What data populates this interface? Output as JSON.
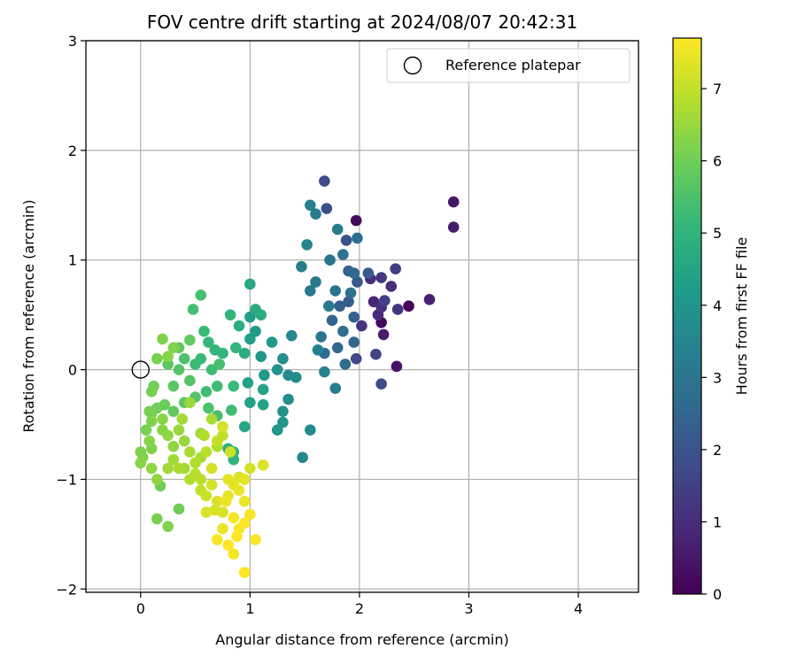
{
  "chart_data": {
    "type": "scatter",
    "title": "FOV centre drift starting at 2024/08/07 20:42:31",
    "xlabel": "Angular distance from reference (arcmin)",
    "ylabel": "Rotation from reference (arcmin)",
    "xlim": [
      -0.5,
      4.55
    ],
    "ylim": [
      -2.03,
      3.0
    ],
    "xticks": [
      0,
      1,
      2,
      3,
      4
    ],
    "yticks": [
      -2,
      -1,
      0,
      1,
      2,
      3
    ],
    "xtick_labels": [
      "0",
      "1",
      "2",
      "3",
      "4"
    ],
    "ytick_labels": [
      "−2",
      "−1",
      "0",
      "1",
      "2",
      "3"
    ],
    "grid": true,
    "legend": {
      "position": "top-right",
      "entries": [
        "Reference platepar"
      ]
    },
    "reference_point": {
      "name": "Reference platepar",
      "x": 0,
      "y": 0,
      "marker": "open-circle"
    },
    "colorbar": {
      "label": "Hours from first FF file",
      "min": 0,
      "max": 7.7,
      "ticks": [
        0,
        1,
        2,
        3,
        4,
        5,
        6,
        7
      ],
      "tick_labels": [
        "0",
        "1",
        "2",
        "3",
        "4",
        "5",
        "6",
        "7"
      ],
      "colormap": "viridis",
      "colormap_stops": [
        "#440154",
        "#482878",
        "#3e4989",
        "#31688e",
        "#26828e",
        "#1f9e89",
        "#35b779",
        "#6ece58",
        "#b5de2b",
        "#fde725"
      ]
    },
    "points": [
      {
        "x": 2.45,
        "y": 0.58,
        "h": 0.05
      },
      {
        "x": 2.2,
        "y": 0.43,
        "h": 0.15
      },
      {
        "x": 1.97,
        "y": 1.36,
        "h": 0.2
      },
      {
        "x": 2.34,
        "y": 0.03,
        "h": 0.4
      },
      {
        "x": 2.86,
        "y": 1.53,
        "h": 0.5
      },
      {
        "x": 2.86,
        "y": 1.3,
        "h": 0.6
      },
      {
        "x": 2.64,
        "y": 0.64,
        "h": 0.7
      },
      {
        "x": 2.22,
        "y": 0.32,
        "h": 0.6
      },
      {
        "x": 2.13,
        "y": 0.62,
        "h": 0.8
      },
      {
        "x": 2.17,
        "y": 0.5,
        "h": 0.9
      },
      {
        "x": 2.1,
        "y": 0.83,
        "h": 1.0
      },
      {
        "x": 2.29,
        "y": 0.76,
        "h": 1.0
      },
      {
        "x": 2.35,
        "y": 0.55,
        "h": 1.2
      },
      {
        "x": 2.2,
        "y": 0.57,
        "h": 1.1
      },
      {
        "x": 2.02,
        "y": 0.4,
        "h": 1.2
      },
      {
        "x": 2.2,
        "y": 0.84,
        "h": 1.3
      },
      {
        "x": 2.33,
        "y": 0.92,
        "h": 1.4
      },
      {
        "x": 2.23,
        "y": 0.63,
        "h": 1.5
      },
      {
        "x": 2.15,
        "y": 0.14,
        "h": 1.6
      },
      {
        "x": 1.97,
        "y": 0.1,
        "h": 1.7
      },
      {
        "x": 2.2,
        "y": -0.13,
        "h": 1.8
      },
      {
        "x": 1.68,
        "y": 1.72,
        "h": 1.8
      },
      {
        "x": 1.7,
        "y": 1.47,
        "h": 1.9
      },
      {
        "x": 1.88,
        "y": 1.18,
        "h": 2.0
      },
      {
        "x": 1.98,
        "y": 0.8,
        "h": 2.1
      },
      {
        "x": 2.08,
        "y": 0.88,
        "h": 2.2
      },
      {
        "x": 1.9,
        "y": 0.62,
        "h": 2.2
      },
      {
        "x": 1.82,
        "y": 0.58,
        "h": 2.3
      },
      {
        "x": 1.95,
        "y": 0.48,
        "h": 2.4
      },
      {
        "x": 1.75,
        "y": 0.45,
        "h": 2.5
      },
      {
        "x": 1.95,
        "y": 0.25,
        "h": 2.5
      },
      {
        "x": 1.8,
        "y": 0.2,
        "h": 2.6
      },
      {
        "x": 1.87,
        "y": 0.05,
        "h": 2.7
      },
      {
        "x": 1.68,
        "y": 0.15,
        "h": 2.7
      },
      {
        "x": 1.98,
        "y": 1.2,
        "h": 2.8
      },
      {
        "x": 1.85,
        "y": 1.05,
        "h": 2.9
      },
      {
        "x": 1.73,
        "y": 1.0,
        "h": 3.0
      },
      {
        "x": 1.78,
        "y": 0.72,
        "h": 3.0
      },
      {
        "x": 1.6,
        "y": 0.8,
        "h": 3.1
      },
      {
        "x": 1.55,
        "y": 0.72,
        "h": 3.1
      },
      {
        "x": 1.47,
        "y": 0.94,
        "h": 3.2
      },
      {
        "x": 1.6,
        "y": 1.42,
        "h": 3.2
      },
      {
        "x": 1.55,
        "y": 1.5,
        "h": 3.3
      },
      {
        "x": 1.78,
        "y": -0.17,
        "h": 3.3
      },
      {
        "x": 1.68,
        "y": -0.02,
        "h": 3.4
      },
      {
        "x": 1.62,
        "y": 0.18,
        "h": 3.4
      },
      {
        "x": 1.52,
        "y": 1.14,
        "h": 3.5
      },
      {
        "x": 1.8,
        "y": 1.28,
        "h": 3.2
      },
      {
        "x": 1.95,
        "y": 0.88,
        "h": 2.6
      },
      {
        "x": 1.92,
        "y": 0.7,
        "h": 2.9
      },
      {
        "x": 1.72,
        "y": 0.58,
        "h": 3.1
      },
      {
        "x": 1.65,
        "y": 0.3,
        "h": 3.0
      },
      {
        "x": 1.85,
        "y": 0.35,
        "h": 2.8
      },
      {
        "x": 1.9,
        "y": 0.9,
        "h": 2.4
      },
      {
        "x": 1.48,
        "y": -0.8,
        "h": 3.6
      },
      {
        "x": 1.55,
        "y": -0.55,
        "h": 3.7
      },
      {
        "x": 1.38,
        "y": 0.31,
        "h": 3.6
      },
      {
        "x": 1.35,
        "y": -0.05,
        "h": 3.7
      },
      {
        "x": 1.42,
        "y": -0.07,
        "h": 3.8
      },
      {
        "x": 1.35,
        "y": -0.27,
        "h": 3.8
      },
      {
        "x": 1.3,
        "y": 0.1,
        "h": 3.8
      },
      {
        "x": 1.25,
        "y": 0.0,
        "h": 3.9
      },
      {
        "x": 1.3,
        "y": -0.38,
        "h": 3.9
      },
      {
        "x": 1.25,
        "y": -0.55,
        "h": 4.0
      },
      {
        "x": 1.3,
        "y": -0.48,
        "h": 4.0
      },
      {
        "x": 1.2,
        "y": 0.25,
        "h": 4.1
      },
      {
        "x": 1.1,
        "y": 0.12,
        "h": 4.1
      },
      {
        "x": 1.05,
        "y": 0.35,
        "h": 4.2
      },
      {
        "x": 1.13,
        "y": -0.05,
        "h": 4.2
      },
      {
        "x": 1.0,
        "y": 0.48,
        "h": 4.3
      },
      {
        "x": 1.0,
        "y": 0.28,
        "h": 4.3
      },
      {
        "x": 0.98,
        "y": -0.12,
        "h": 4.4
      },
      {
        "x": 1.0,
        "y": -0.3,
        "h": 4.4
      },
      {
        "x": 1.12,
        "y": -0.32,
        "h": 4.5
      },
      {
        "x": 1.12,
        "y": -0.18,
        "h": 4.5
      },
      {
        "x": 0.95,
        "y": -0.52,
        "h": 4.6
      },
      {
        "x": 1.0,
        "y": 0.78,
        "h": 4.6
      },
      {
        "x": 1.05,
        "y": 0.55,
        "h": 4.7
      },
      {
        "x": 1.1,
        "y": 0.5,
        "h": 4.7
      },
      {
        "x": 0.95,
        "y": 0.15,
        "h": 4.8
      },
      {
        "x": 0.9,
        "y": 0.4,
        "h": 4.8
      },
      {
        "x": 0.8,
        "y": -0.72,
        "h": 4.9
      },
      {
        "x": 0.85,
        "y": -0.75,
        "h": 4.9
      },
      {
        "x": 0.85,
        "y": -0.82,
        "h": 5.0
      },
      {
        "x": 0.75,
        "y": 0.15,
        "h": 5.0
      },
      {
        "x": 0.68,
        "y": 0.18,
        "h": 5.1
      },
      {
        "x": 0.62,
        "y": 0.25,
        "h": 5.1
      },
      {
        "x": 0.55,
        "y": 0.1,
        "h": 5.2
      },
      {
        "x": 0.5,
        "y": 0.05,
        "h": 5.2
      },
      {
        "x": 0.7,
        "y": -0.15,
        "h": 5.3
      },
      {
        "x": 0.6,
        "y": -0.2,
        "h": 5.3
      },
      {
        "x": 0.55,
        "y": 0.68,
        "h": 5.4
      },
      {
        "x": 0.48,
        "y": 0.55,
        "h": 5.4
      },
      {
        "x": 0.82,
        "y": 0.5,
        "h": 5.0
      },
      {
        "x": 0.87,
        "y": 0.2,
        "h": 5.1
      },
      {
        "x": 0.85,
        "y": -0.15,
        "h": 5.2
      },
      {
        "x": 0.83,
        "y": -0.37,
        "h": 5.3
      },
      {
        "x": 0.7,
        "y": -0.42,
        "h": 5.4
      },
      {
        "x": 0.62,
        "y": -0.35,
        "h": 5.5
      },
      {
        "x": 0.4,
        "y": 0.1,
        "h": 5.5
      },
      {
        "x": 0.35,
        "y": 0.0,
        "h": 5.6
      },
      {
        "x": 0.45,
        "y": -0.1,
        "h": 5.6
      },
      {
        "x": 0.3,
        "y": -0.15,
        "h": 5.7
      },
      {
        "x": 0.25,
        "y": 0.05,
        "h": 5.7
      },
      {
        "x": 0.35,
        "y": 0.2,
        "h": 5.8
      },
      {
        "x": 0.45,
        "y": 0.27,
        "h": 5.8
      },
      {
        "x": 0.65,
        "y": 0.0,
        "h": 5.3
      },
      {
        "x": 0.58,
        "y": 0.35,
        "h": 5.2
      },
      {
        "x": 0.72,
        "y": 0.05,
        "h": 5.4
      },
      {
        "x": 0.5,
        "y": -0.25,
        "h": 5.6
      },
      {
        "x": 0.4,
        "y": -0.3,
        "h": 5.7
      },
      {
        "x": 0.3,
        "y": -0.38,
        "h": 5.8
      },
      {
        "x": 0.22,
        "y": -0.32,
        "h": 5.9
      },
      {
        "x": 0.15,
        "y": -0.35,
        "h": 6.0
      },
      {
        "x": 0.1,
        "y": -0.4,
        "h": 6.0
      },
      {
        "x": 0.08,
        "y": -0.38,
        "h": 6.1
      },
      {
        "x": 0.05,
        "y": -0.55,
        "h": 6.1
      },
      {
        "x": 0.0,
        "y": -0.75,
        "h": 6.2
      },
      {
        "x": 0.02,
        "y": -0.8,
        "h": 6.2
      },
      {
        "x": 0.0,
        "y": -0.85,
        "h": 6.3
      },
      {
        "x": 0.08,
        "y": -0.65,
        "h": 6.3
      },
      {
        "x": 0.1,
        "y": -0.9,
        "h": 6.4
      },
      {
        "x": 0.15,
        "y": -1.0,
        "h": 6.4
      },
      {
        "x": 0.18,
        "y": -1.06,
        "h": 6.0
      },
      {
        "x": 0.15,
        "y": -1.36,
        "h": 6.1
      },
      {
        "x": 0.25,
        "y": -1.43,
        "h": 6.2
      },
      {
        "x": 0.35,
        "y": -1.27,
        "h": 6.0
      },
      {
        "x": 0.2,
        "y": -0.55,
        "h": 6.3
      },
      {
        "x": 0.25,
        "y": -0.6,
        "h": 6.4
      },
      {
        "x": 0.3,
        "y": -0.7,
        "h": 6.4
      },
      {
        "x": 0.35,
        "y": -0.55,
        "h": 6.5
      },
      {
        "x": 0.4,
        "y": -0.65,
        "h": 6.5
      },
      {
        "x": 0.25,
        "y": -0.9,
        "h": 6.6
      },
      {
        "x": 0.3,
        "y": -0.82,
        "h": 6.6
      },
      {
        "x": 0.35,
        "y": -0.9,
        "h": 6.7
      },
      {
        "x": 0.45,
        "y": -0.75,
        "h": 6.7
      },
      {
        "x": 0.5,
        "y": -0.85,
        "h": 6.8
      },
      {
        "x": 0.45,
        "y": -1.0,
        "h": 6.8
      },
      {
        "x": 0.55,
        "y": -1.0,
        "h": 6.9
      },
      {
        "x": 0.6,
        "y": -0.75,
        "h": 6.9
      },
      {
        "x": 0.58,
        "y": -0.6,
        "h": 6.8
      },
      {
        "x": 0.65,
        "y": -0.45,
        "h": 6.7
      },
      {
        "x": 0.7,
        "y": -0.65,
        "h": 7.0
      },
      {
        "x": 0.75,
        "y": -0.6,
        "h": 7.0
      },
      {
        "x": 0.75,
        "y": -0.52,
        "h": 7.1
      },
      {
        "x": 0.82,
        "y": -0.75,
        "h": 7.1
      },
      {
        "x": 0.65,
        "y": -0.9,
        "h": 7.2
      },
      {
        "x": 0.55,
        "y": -0.58,
        "h": 6.6
      },
      {
        "x": 0.45,
        "y": -0.3,
        "h": 6.5
      },
      {
        "x": 0.38,
        "y": -0.45,
        "h": 6.6
      },
      {
        "x": 0.1,
        "y": -0.72,
        "h": 6.2
      },
      {
        "x": 0.12,
        "y": -0.15,
        "h": 6.0
      },
      {
        "x": 0.1,
        "y": -0.2,
        "h": 6.1
      },
      {
        "x": 0.15,
        "y": 0.1,
        "h": 6.1
      },
      {
        "x": 0.2,
        "y": 0.28,
        "h": 6.2
      },
      {
        "x": 0.3,
        "y": 0.2,
        "h": 6.2
      },
      {
        "x": 0.25,
        "y": 0.12,
        "h": 6.3
      },
      {
        "x": 0.65,
        "y": -1.05,
        "h": 7.2
      },
      {
        "x": 0.7,
        "y": -1.2,
        "h": 7.3
      },
      {
        "x": 0.75,
        "y": -1.3,
        "h": 7.3
      },
      {
        "x": 0.8,
        "y": -1.15,
        "h": 7.4
      },
      {
        "x": 0.85,
        "y": -1.05,
        "h": 7.4
      },
      {
        "x": 0.9,
        "y": -1.1,
        "h": 7.5
      },
      {
        "x": 0.95,
        "y": -1.2,
        "h": 7.5
      },
      {
        "x": 1.0,
        "y": -1.32,
        "h": 7.6
      },
      {
        "x": 0.85,
        "y": -1.35,
        "h": 7.6
      },
      {
        "x": 0.75,
        "y": -1.45,
        "h": 7.5
      },
      {
        "x": 0.7,
        "y": -1.55,
        "h": 7.6
      },
      {
        "x": 0.8,
        "y": -1.6,
        "h": 7.7
      },
      {
        "x": 0.88,
        "y": -1.52,
        "h": 7.7
      },
      {
        "x": 0.85,
        "y": -1.68,
        "h": 7.6
      },
      {
        "x": 0.95,
        "y": -1.85,
        "h": 7.7
      },
      {
        "x": 1.05,
        "y": -1.55,
        "h": 7.6
      },
      {
        "x": 0.95,
        "y": -1.0,
        "h": 7.4
      },
      {
        "x": 0.9,
        "y": -0.98,
        "h": 7.3
      },
      {
        "x": 0.8,
        "y": -1.0,
        "h": 7.4
      },
      {
        "x": 0.6,
        "y": -1.3,
        "h": 7.3
      },
      {
        "x": 0.68,
        "y": -1.28,
        "h": 7.2
      },
      {
        "x": 1.0,
        "y": -0.9,
        "h": 7.2
      },
      {
        "x": 1.12,
        "y": -0.87,
        "h": 7.3
      },
      {
        "x": 0.95,
        "y": -1.4,
        "h": 7.7
      },
      {
        "x": 0.9,
        "y": -1.45,
        "h": 7.6
      },
      {
        "x": 0.78,
        "y": -1.2,
        "h": 7.5
      },
      {
        "x": 0.6,
        "y": -1.15,
        "h": 7.1
      },
      {
        "x": 0.55,
        "y": -1.1,
        "h": 7.0
      },
      {
        "x": 0.5,
        "y": -0.95,
        "h": 6.9
      },
      {
        "x": 0.75,
        "y": -0.52,
        "h": 7.2
      },
      {
        "x": 0.7,
        "y": -0.7,
        "h": 6.8
      },
      {
        "x": 0.55,
        "y": -0.8,
        "h": 6.7
      },
      {
        "x": 0.4,
        "y": -0.9,
        "h": 6.6
      },
      {
        "x": 0.2,
        "y": -0.45,
        "h": 6.3
      },
      {
        "x": 0.1,
        "y": -0.47,
        "h": 6.2
      }
    ]
  }
}
